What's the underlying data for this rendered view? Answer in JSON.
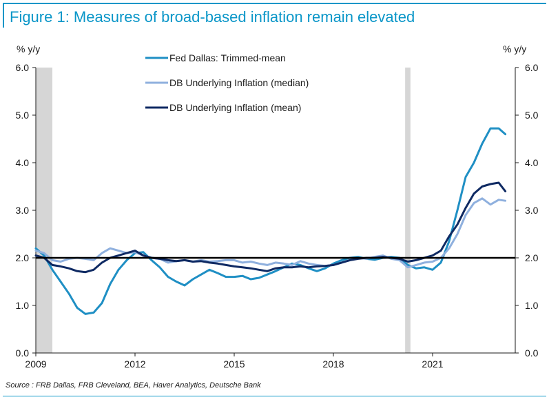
{
  "figure": {
    "title": "Figure 1: Measures of broad-based inflation remain elevated",
    "source": "Source : FRB Dallas, FRB Cleveland, BEA, Haver Analytics, Deutsche Bank"
  },
  "colors": {
    "title": "#0a96c8",
    "trimmed_mean": "#1f8fc4",
    "median": "#8fb0de",
    "mean": "#0f2a63",
    "recession": "#d6d6d6",
    "reference": "#000000"
  },
  "chart_data": {
    "type": "line",
    "ylabel_left": "% y/y",
    "ylabel_right": "% y/y",
    "ylim": [
      0,
      6
    ],
    "yticks": [
      "0.0",
      "1.0",
      "2.0",
      "3.0",
      "4.0",
      "5.0",
      "6.0"
    ],
    "xlim": [
      2009,
      2023.5
    ],
    "xticks": [
      "2009",
      "2012",
      "2015",
      "2018",
      "2021"
    ],
    "reference_line": 2.0,
    "recessions": [
      [
        2009.0,
        2009.5
      ],
      [
        2020.17,
        2020.33
      ]
    ],
    "legend_position": "top-center",
    "grid": false,
    "series": [
      {
        "name": "Fed Dallas: Trimmed-mean",
        "color_key": "trimmed_mean",
        "x": [
          2009.0,
          2009.25,
          2009.5,
          2009.75,
          2010.0,
          2010.25,
          2010.5,
          2010.75,
          2011.0,
          2011.25,
          2011.5,
          2011.75,
          2012.0,
          2012.25,
          2012.5,
          2012.75,
          2013.0,
          2013.25,
          2013.5,
          2013.75,
          2014.0,
          2014.25,
          2014.5,
          2014.75,
          2015.0,
          2015.25,
          2015.5,
          2015.75,
          2016.0,
          2016.25,
          2016.5,
          2016.75,
          2017.0,
          2017.25,
          2017.5,
          2017.75,
          2018.0,
          2018.25,
          2018.5,
          2018.75,
          2019.0,
          2019.25,
          2019.5,
          2019.75,
          2020.0,
          2020.25,
          2020.5,
          2020.75,
          2021.0,
          2021.25,
          2021.5,
          2021.75,
          2022.0,
          2022.25,
          2022.5,
          2022.75,
          2023.0,
          2023.2
        ],
        "y": [
          2.2,
          2.05,
          1.75,
          1.5,
          1.25,
          0.95,
          0.82,
          0.85,
          1.05,
          1.45,
          1.75,
          1.95,
          2.1,
          2.12,
          1.95,
          1.8,
          1.6,
          1.5,
          1.42,
          1.55,
          1.65,
          1.75,
          1.68,
          1.6,
          1.6,
          1.62,
          1.55,
          1.58,
          1.65,
          1.72,
          1.8,
          1.88,
          1.85,
          1.78,
          1.72,
          1.78,
          1.88,
          1.95,
          2.0,
          2.02,
          1.98,
          1.96,
          2.0,
          2.02,
          2.0,
          1.85,
          1.78,
          1.8,
          1.75,
          1.9,
          2.35,
          3.0,
          3.7,
          4.0,
          4.4,
          4.72,
          4.72,
          4.6
        ]
      },
      {
        "name": "DB Underlying Inflation (median)",
        "color_key": "median",
        "x": [
          2009.0,
          2009.25,
          2009.5,
          2009.75,
          2010.0,
          2010.25,
          2010.5,
          2010.75,
          2011.0,
          2011.25,
          2011.5,
          2011.75,
          2012.0,
          2012.25,
          2012.5,
          2012.75,
          2013.0,
          2013.25,
          2013.5,
          2013.75,
          2014.0,
          2014.25,
          2014.5,
          2014.75,
          2015.0,
          2015.25,
          2015.5,
          2015.75,
          2016.0,
          2016.25,
          2016.5,
          2016.75,
          2017.0,
          2017.25,
          2017.5,
          2017.75,
          2018.0,
          2018.25,
          2018.5,
          2018.75,
          2019.0,
          2019.25,
          2019.5,
          2019.75,
          2020.0,
          2020.25,
          2020.5,
          2020.75,
          2021.0,
          2021.25,
          2021.5,
          2021.75,
          2022.0,
          2022.25,
          2022.5,
          2022.75,
          2023.0,
          2023.2
        ],
        "y": [
          2.15,
          2.1,
          1.95,
          1.92,
          1.98,
          2.0,
          1.98,
          1.95,
          2.1,
          2.2,
          2.15,
          2.1,
          2.12,
          2.05,
          2.0,
          1.98,
          1.9,
          1.93,
          1.95,
          1.92,
          1.95,
          1.92,
          1.93,
          1.95,
          1.95,
          1.9,
          1.92,
          1.88,
          1.85,
          1.9,
          1.88,
          1.85,
          1.93,
          1.88,
          1.85,
          1.83,
          1.85,
          1.9,
          1.95,
          2.0,
          1.98,
          2.02,
          2.05,
          1.98,
          1.95,
          1.8,
          1.85,
          1.9,
          1.92,
          2.0,
          2.2,
          2.5,
          2.9,
          3.15,
          3.25,
          3.12,
          3.22,
          3.2
        ]
      },
      {
        "name": "DB Underlying Inflation (mean)",
        "color_key": "mean",
        "x": [
          2009.0,
          2009.25,
          2009.5,
          2009.75,
          2010.0,
          2010.25,
          2010.5,
          2010.75,
          2011.0,
          2011.25,
          2011.5,
          2011.75,
          2012.0,
          2012.25,
          2012.5,
          2012.75,
          2013.0,
          2013.25,
          2013.5,
          2013.75,
          2014.0,
          2014.25,
          2014.5,
          2014.75,
          2015.0,
          2015.25,
          2015.5,
          2015.75,
          2016.0,
          2016.25,
          2016.5,
          2016.75,
          2017.0,
          2017.25,
          2017.5,
          2017.75,
          2018.0,
          2018.25,
          2018.5,
          2018.75,
          2019.0,
          2019.25,
          2019.5,
          2019.75,
          2020.0,
          2020.25,
          2020.5,
          2020.75,
          2021.0,
          2021.25,
          2021.5,
          2021.75,
          2022.0,
          2022.25,
          2022.5,
          2022.75,
          2023.0,
          2023.2
        ],
        "y": [
          2.05,
          2.0,
          1.85,
          1.82,
          1.78,
          1.72,
          1.7,
          1.75,
          1.9,
          2.0,
          2.05,
          2.1,
          2.15,
          2.05,
          2.0,
          1.98,
          1.95,
          1.93,
          1.95,
          1.92,
          1.93,
          1.9,
          1.88,
          1.85,
          1.82,
          1.8,
          1.78,
          1.75,
          1.72,
          1.78,
          1.8,
          1.8,
          1.82,
          1.8,
          1.82,
          1.83,
          1.85,
          1.9,
          1.95,
          1.98,
          2.0,
          2.0,
          2.02,
          2.0,
          1.98,
          1.92,
          1.95,
          2.0,
          2.05,
          2.15,
          2.45,
          2.7,
          3.05,
          3.35,
          3.5,
          3.55,
          3.58,
          3.4
        ]
      }
    ]
  }
}
